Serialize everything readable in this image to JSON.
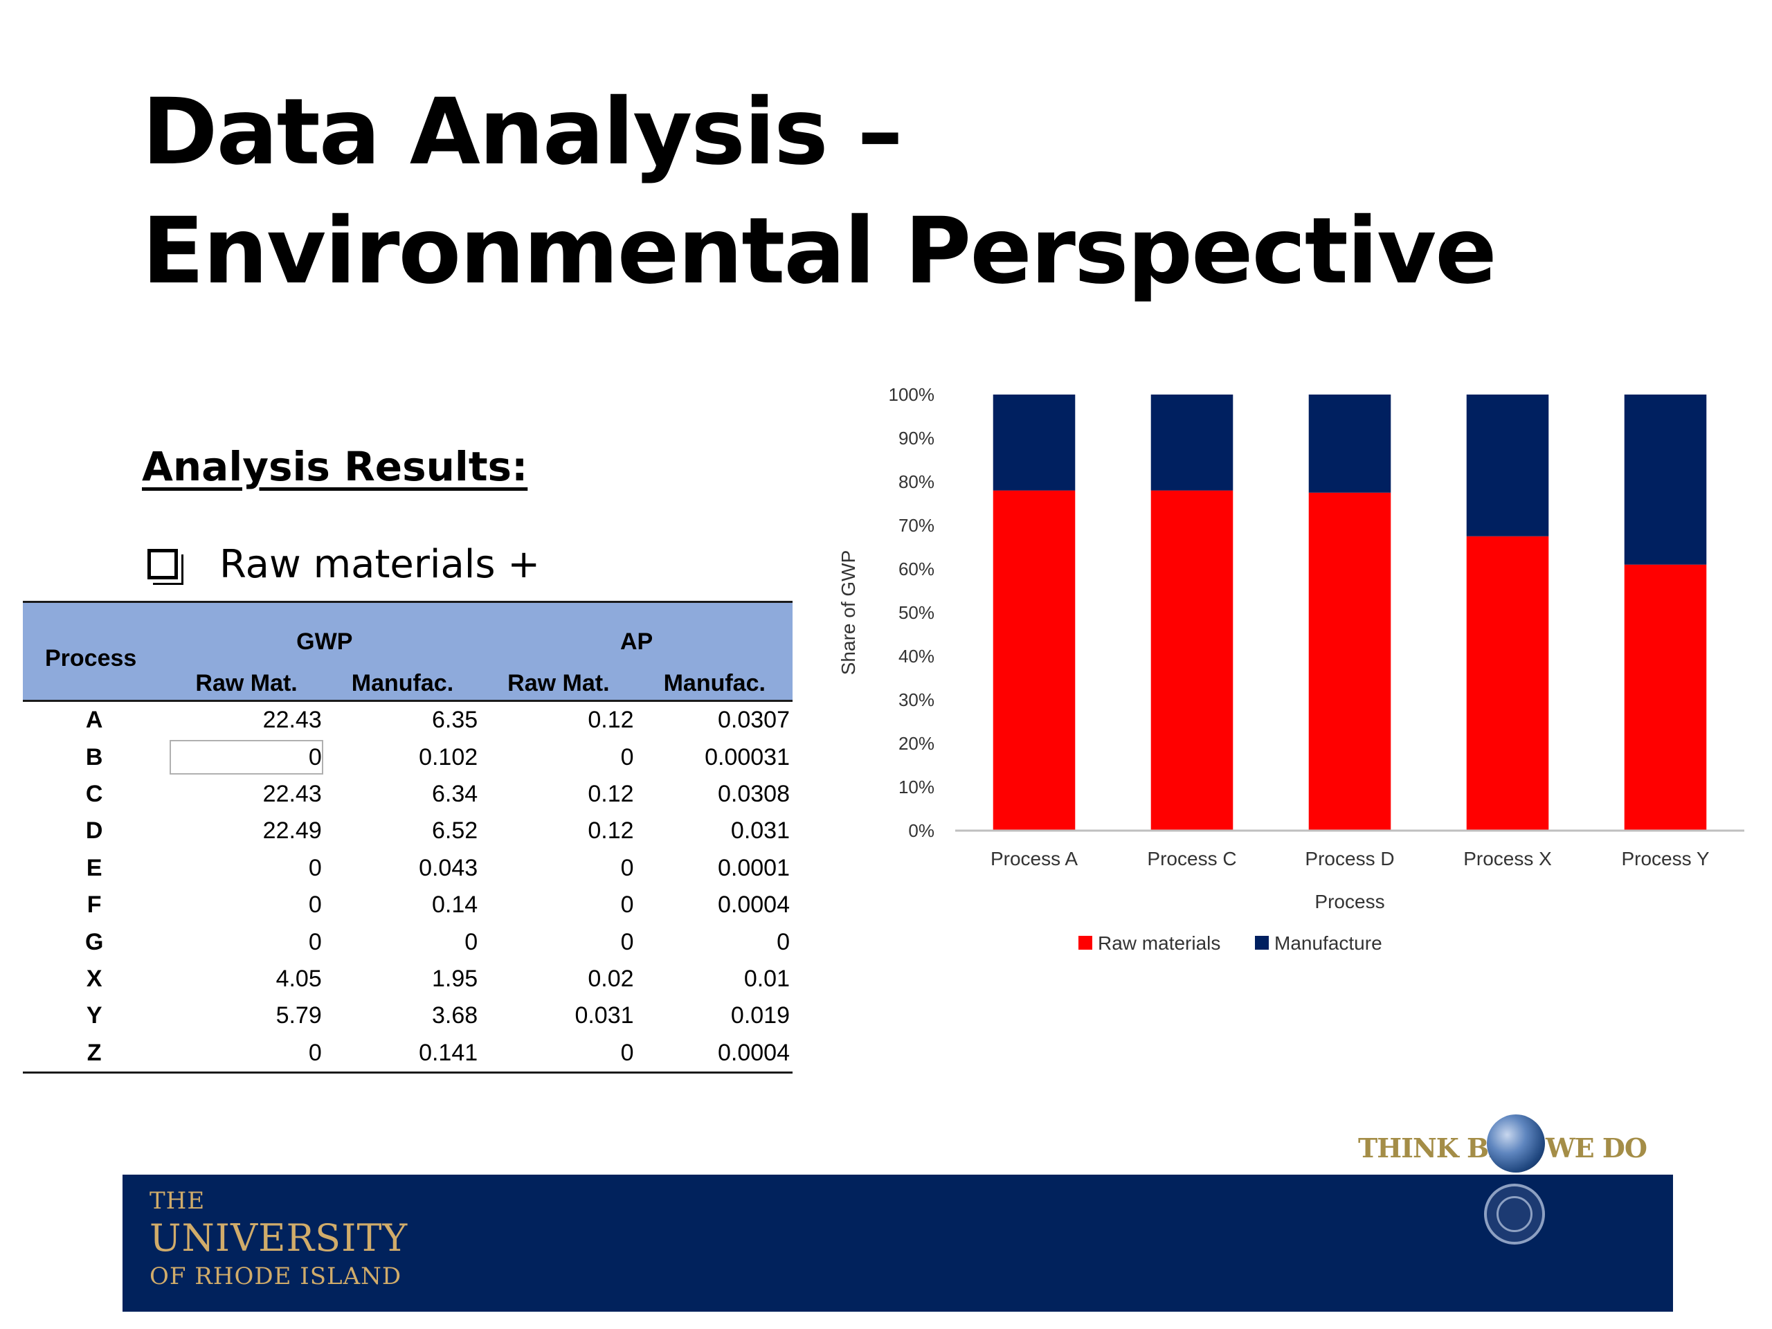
{
  "slide": {
    "title_line1": "Data Analysis –",
    "title_line2": "Environmental Perspective",
    "subheading": "Analysis Results:",
    "bullet": "Raw materials +"
  },
  "table": {
    "process_header": "Process",
    "group_headers": [
      "GWP",
      "AP"
    ],
    "sub_headers": [
      "Raw Mat.",
      "Manufac.",
      "Raw Mat.",
      "Manufac."
    ],
    "rows": [
      [
        "A",
        "22.43",
        "6.35",
        "0.12",
        "0.0307"
      ],
      [
        "B",
        "0",
        "0.102",
        "0",
        "0.00031"
      ],
      [
        "C",
        "22.43",
        "6.34",
        "0.12",
        "0.0308"
      ],
      [
        "D",
        "22.49",
        "6.52",
        "0.12",
        "0.031"
      ],
      [
        "E",
        "0",
        "0.043",
        "0",
        "0.0001"
      ],
      [
        "F",
        "0",
        "0.14",
        "0",
        "0.0004"
      ],
      [
        "G",
        "0",
        "0",
        "0",
        "0"
      ],
      [
        "X",
        "4.05",
        "1.95",
        "0.02",
        "0.01"
      ],
      [
        "Y",
        "5.79",
        "3.68",
        "0.031",
        "0.019"
      ],
      [
        "Z",
        "0",
        "0.141",
        "0",
        "0.0004"
      ]
    ],
    "header_color": "#8eaadb"
  },
  "chart_data": {
    "type": "bar",
    "stacked": true,
    "categories": [
      "Process A",
      "Process C",
      "Process D",
      "Process X",
      "Process Y"
    ],
    "series": [
      {
        "name": "Raw materials",
        "color": "#ff0000",
        "values": [
          78,
          78,
          77.5,
          67.5,
          61
        ]
      },
      {
        "name": "Manufacture",
        "color": "#002060",
        "values": [
          22,
          22,
          22.5,
          32.5,
          39
        ]
      }
    ],
    "ylabel": "Share of GWP",
    "xlabel": "Process",
    "ylim": [
      0,
      100
    ],
    "yticks": [
      "0%",
      "10%",
      "20%",
      "30%",
      "40%",
      "50%",
      "60%",
      "70%",
      "80%",
      "90%",
      "100%"
    ],
    "legend": "bottom",
    "grid": false
  },
  "footer": {
    "the": "THE",
    "university": "UNIVERSITY",
    "of_rhode_island": "OF RHODE ISLAND",
    "tagline_left": "THINK BIG",
    "tagline_right": "WE DO",
    "bar_color": "#01225c",
    "gold_color": "#d1ac6a"
  }
}
